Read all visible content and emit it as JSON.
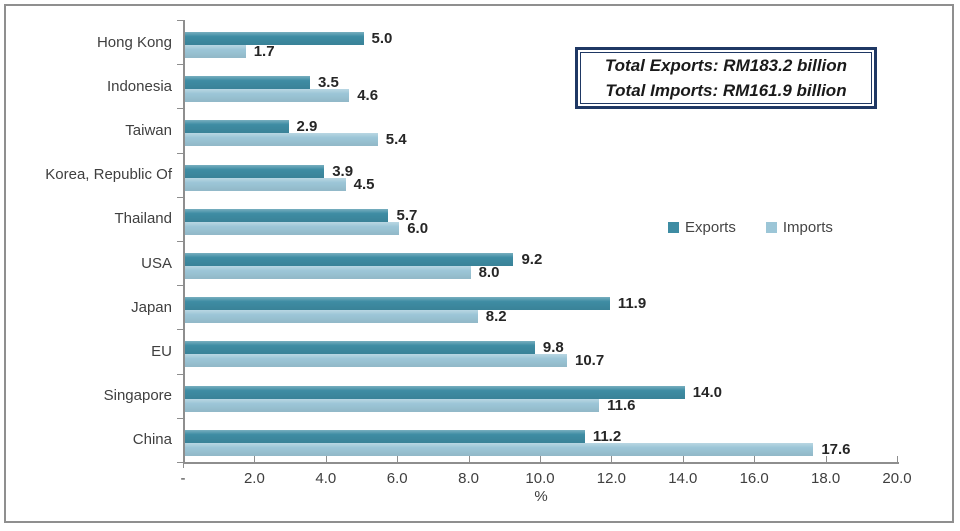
{
  "chart_data": {
    "type": "bar",
    "orientation": "horizontal",
    "categories": [
      "Hong Kong",
      "Indonesia",
      "Taiwan",
      "Korea, Republic Of",
      "Thailand",
      "USA",
      "Japan",
      "EU",
      "Singapore",
      "China"
    ],
    "series": [
      {
        "name": "Exports",
        "color": "#3e8ca3",
        "values": [
          5.0,
          3.5,
          2.9,
          3.9,
          5.7,
          9.2,
          11.9,
          9.8,
          14.0,
          11.2
        ]
      },
      {
        "name": "Imports",
        "color": "#9cc6d7",
        "values": [
          1.7,
          4.6,
          5.4,
          4.5,
          6.0,
          8.0,
          8.2,
          10.7,
          11.6,
          17.6
        ]
      }
    ],
    "value_labels": true,
    "xlabel": "%",
    "xlim": [
      0,
      20
    ],
    "xticks": {
      "labels": [
        "-",
        "2.0",
        "4.0",
        "6.0",
        "8.0",
        "10.0",
        "12.0",
        "14.0",
        "16.0",
        "18.0",
        "20.0"
      ],
      "values": [
        0,
        2,
        4,
        6,
        8,
        10,
        12,
        14,
        16,
        18,
        20
      ]
    },
    "grid": false,
    "legend": {
      "position": "middle-right",
      "entries": [
        "Exports",
        "Imports"
      ]
    },
    "annotation": {
      "lines": [
        "Total Exports: RM183.2 billion",
        "Total Imports: RM161.9 billion"
      ],
      "border_color": "#1f3864"
    },
    "colors": {
      "exports_bar": "#3e8ca3",
      "imports_bar": "#9cc6d7",
      "axis": "#8e8e8e",
      "frame_border": "#8f8f8f",
      "annotation_border": "#1f3864",
      "text": "#3f3f3f"
    }
  }
}
